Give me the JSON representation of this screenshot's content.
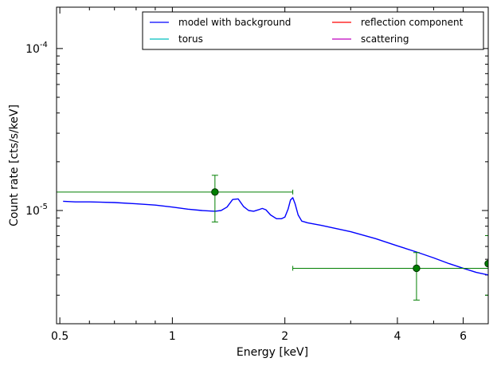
{
  "chart_data": {
    "type": "line",
    "title": "",
    "xlabel": "Energy [keV]",
    "ylabel": "Count rate [cts/s/keV]",
    "x_scale": "log",
    "y_scale": "log",
    "xlim": [
      0.49,
      7.0
    ],
    "ylim": [
      2e-06,
      0.00018
    ],
    "x_ticks": [
      {
        "value": 0.5,
        "label": "0.5"
      },
      {
        "value": 1,
        "label": "1"
      },
      {
        "value": 2,
        "label": "2"
      },
      {
        "value": 4,
        "label": "4"
      },
      {
        "value": 6,
        "label": "6"
      }
    ],
    "y_ticks": [
      {
        "value": 1e-05,
        "base": "10",
        "exp": "-5"
      },
      {
        "value": 0.0001,
        "base": "10",
        "exp": "-4"
      }
    ],
    "legend_position": "top-right",
    "legend": [
      {
        "label": "model with background",
        "color": "#0000ff"
      },
      {
        "label": "reflection component",
        "color": "#ff0000"
      },
      {
        "label": "torus",
        "color": "#00bfbf"
      },
      {
        "label": "scattering",
        "color": "#bf00bf"
      }
    ],
    "series": [
      {
        "name": "model with background",
        "color": "#0000ff",
        "x": [
          0.51,
          0.55,
          0.6,
          0.7,
          0.8,
          0.9,
          1.0,
          1.1,
          1.2,
          1.3,
          1.35,
          1.4,
          1.45,
          1.5,
          1.55,
          1.6,
          1.65,
          1.7,
          1.74,
          1.78,
          1.83,
          1.9,
          1.96,
          2.0,
          2.04,
          2.07,
          2.1,
          2.13,
          2.17,
          2.22,
          2.3,
          2.5,
          3.0,
          3.5,
          4.0,
          4.5,
          5.0,
          5.5,
          6.0,
          6.5,
          7.0
        ],
        "y": [
          1.14e-05,
          1.13e-05,
          1.13e-05,
          1.12e-05,
          1.1e-05,
          1.08e-05,
          1.05e-05,
          1.02e-05,
          1e-05,
          9.9e-06,
          1e-05,
          1.05e-05,
          1.17e-05,
          1.18e-05,
          1.06e-05,
          1e-05,
          9.9e-06,
          1.01e-05,
          1.03e-05,
          1.01e-05,
          9.4e-06,
          8.9e-06,
          8.9e-06,
          9.1e-06,
          1.02e-05,
          1.16e-05,
          1.2e-05,
          1.1e-05,
          9.4e-06,
          8.6e-06,
          8.4e-06,
          8.1e-06,
          7.4e-06,
          6.7e-06,
          6.05e-06,
          5.55e-06,
          5.1e-06,
          4.7e-06,
          4.4e-06,
          4.15e-06,
          4e-06
        ]
      },
      {
        "name": "data",
        "color": "#007f00",
        "points": [
          {
            "x": 1.3,
            "y": 1.3e-05,
            "xerr": [
              0.49,
              2.1
            ],
            "yerr": [
              8.5e-06,
              1.65e-05
            ]
          },
          {
            "x": 4.5,
            "y": 4.4e-06,
            "xerr": [
              2.1,
              7.0
            ],
            "yerr": [
              2.8e-06,
              5.5e-06
            ]
          },
          {
            "x": 7.0,
            "y": 4.7e-06,
            "xerr": [
              6.9,
              7.2
            ],
            "yerr": [
              3e-06,
              7e-06
            ]
          }
        ]
      }
    ]
  }
}
